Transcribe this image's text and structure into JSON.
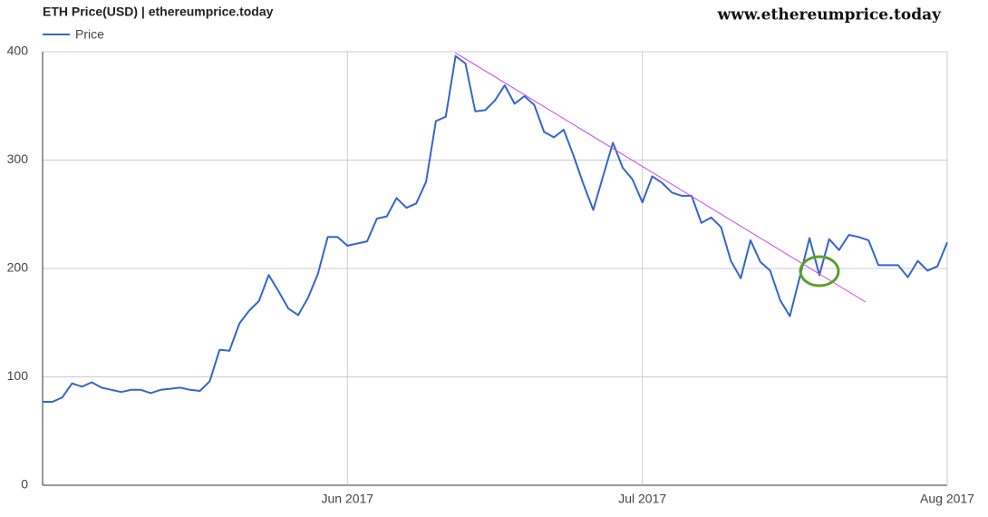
{
  "chart_data": {
    "type": "line",
    "title": "ETH Price(USD) | ethereumprice.today",
    "watermark": "www.ethereumprice.today",
    "categories": [
      null,
      null,
      null,
      null,
      null,
      null,
      null,
      null,
      null,
      null,
      null,
      null,
      null,
      null,
      null,
      null,
      null,
      null,
      null,
      null,
      null,
      null,
      null,
      null,
      null,
      null,
      null,
      null,
      null,
      null,
      null,
      "Jun 2017",
      null,
      null,
      null,
      null,
      null,
      null,
      null,
      null,
      null,
      null,
      null,
      null,
      null,
      null,
      null,
      null,
      null,
      null,
      null,
      null,
      null,
      null,
      null,
      null,
      null,
      null,
      null,
      null,
      null,
      "Jul 2017",
      null,
      null,
      null,
      null,
      null,
      null,
      null,
      null,
      null,
      null,
      null,
      null,
      null,
      null,
      null,
      null,
      null,
      null,
      null,
      null,
      null,
      null,
      null,
      null,
      null,
      null,
      null,
      null,
      null,
      null,
      "Aug 2017"
    ],
    "series": [
      {
        "name": "Price",
        "color": "#3366cc",
        "values": [
          77,
          77,
          81,
          94,
          91,
          95,
          90,
          88,
          86,
          88,
          88,
          85,
          88,
          89,
          90,
          88,
          87,
          96,
          125,
          124,
          149,
          161,
          170,
          194,
          179,
          163,
          157,
          173,
          195,
          229,
          229,
          221,
          223,
          225,
          246,
          248,
          265,
          256,
          260,
          280,
          336,
          340,
          396,
          389,
          345,
          346,
          355,
          369,
          352,
          359,
          351,
          326,
          321,
          328,
          304,
          278,
          254,
          285,
          316,
          293,
          282,
          261,
          285,
          279,
          270,
          267,
          267,
          242,
          247,
          238,
          207,
          191,
          226,
          206,
          198,
          171,
          156,
          192,
          228,
          194,
          227,
          217,
          231,
          229,
          226,
          203,
          203,
          203,
          192,
          207,
          198,
          202,
          224
        ]
      }
    ],
    "ylim": [
      0,
      400
    ],
    "yticks": [
      0,
      100,
      200,
      300,
      400
    ],
    "grid": true
  }
}
